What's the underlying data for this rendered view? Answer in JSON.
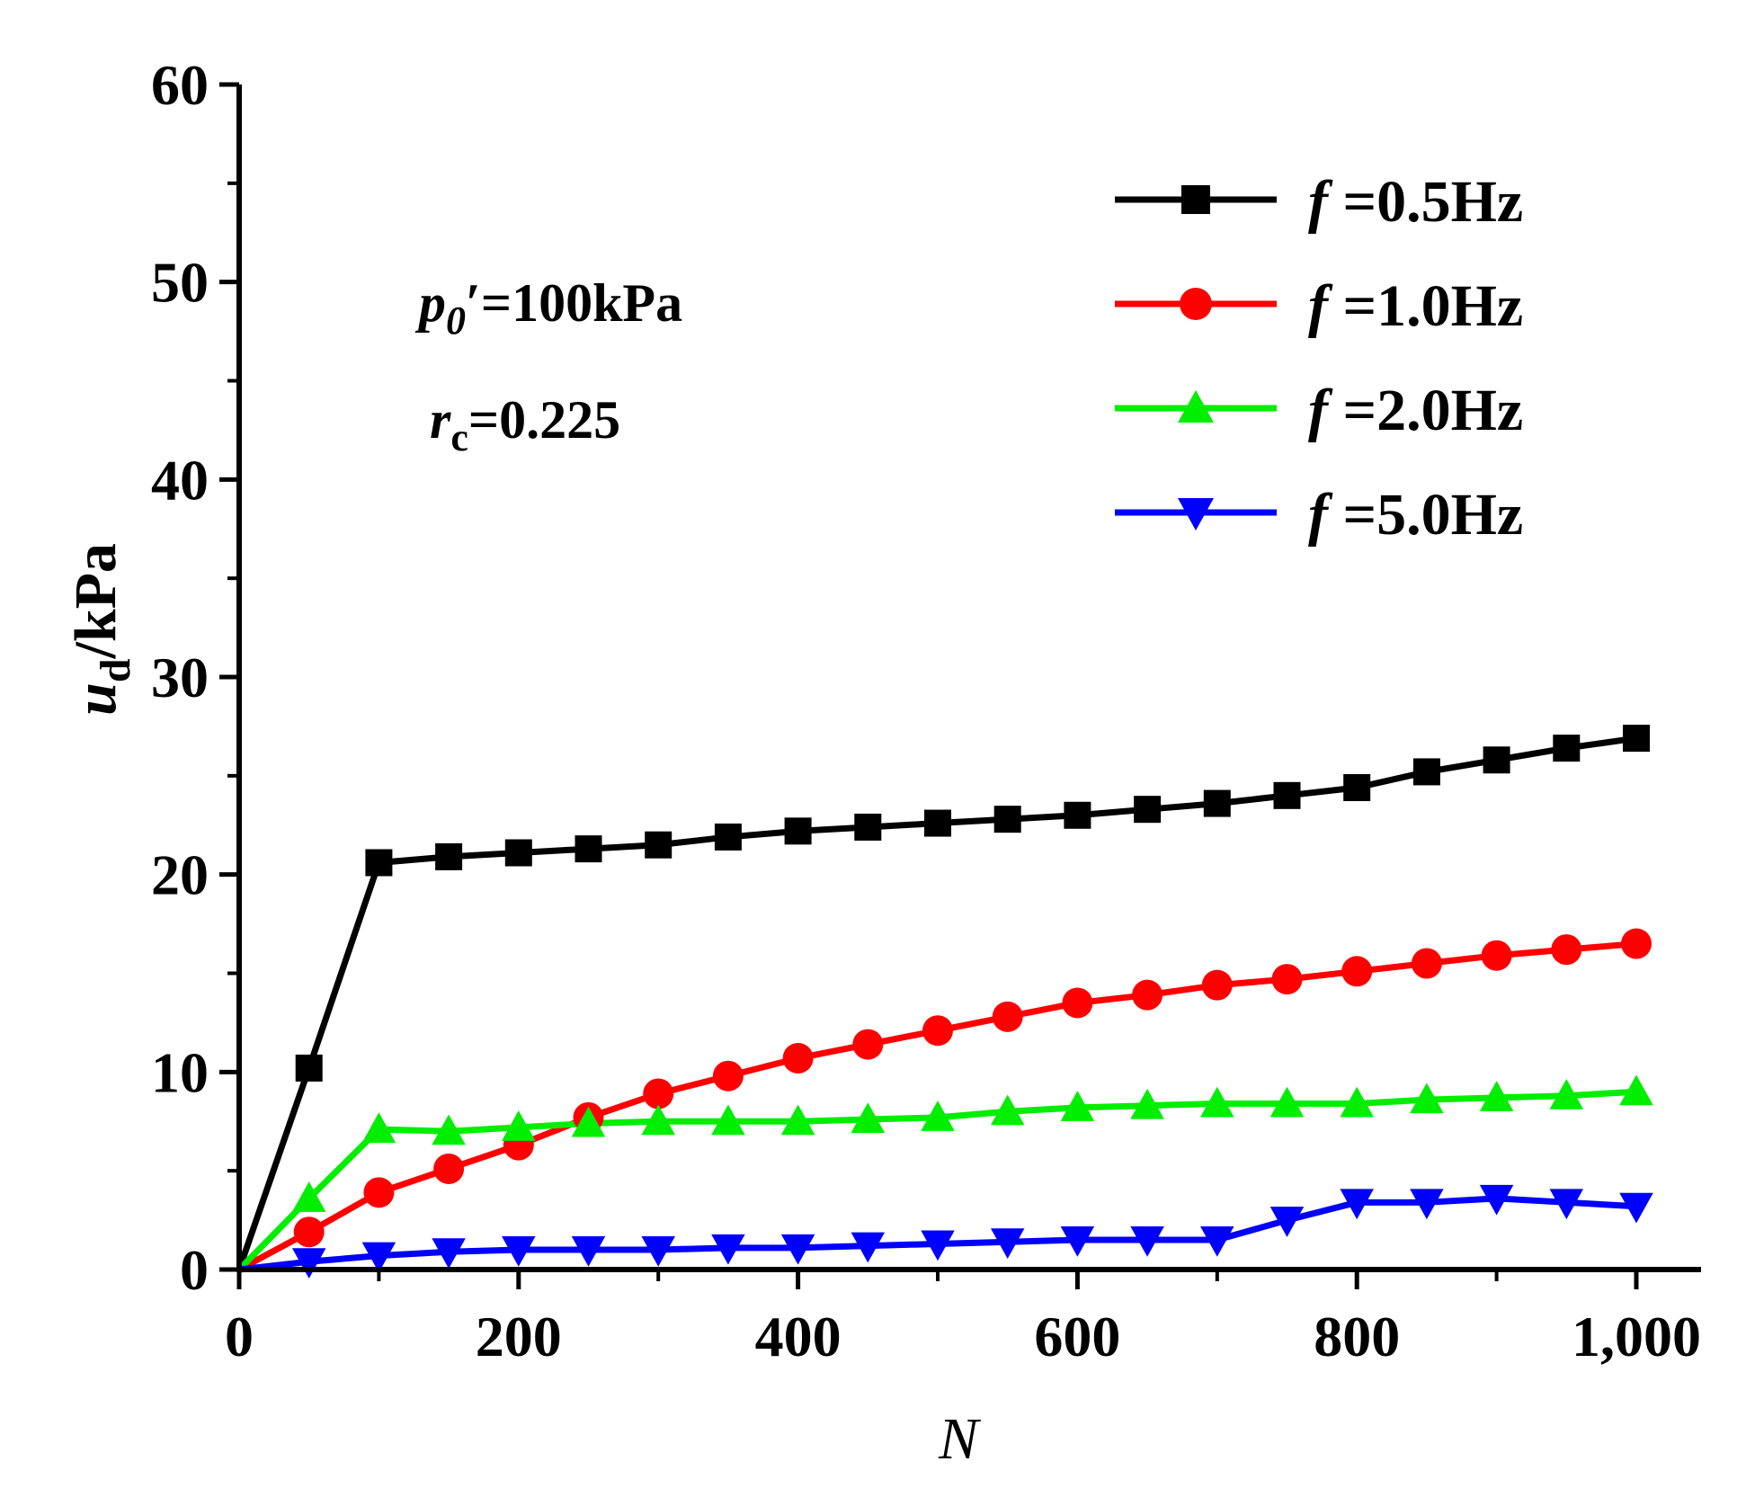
{
  "chart_data": {
    "type": "line",
    "title": "",
    "xlabel": "N",
    "ylabel_main": "u",
    "ylabel_sub": "d",
    "ylabel_unit": "/kPa",
    "xlim": [
      0,
      1050
    ],
    "ylim": [
      0,
      60
    ],
    "xticks": [
      0,
      200,
      400,
      600,
      800,
      1000
    ],
    "xtick_labels": [
      "0",
      "200",
      "400",
      "600",
      "800",
      "1,000"
    ],
    "yticks": [
      0,
      10,
      20,
      30,
      40,
      50,
      60
    ],
    "ytick_labels": [
      "0",
      "10",
      "20",
      "30",
      "40",
      "50",
      "60"
    ],
    "x": [
      0,
      50,
      100,
      150,
      200,
      250,
      300,
      350,
      400,
      450,
      500,
      550,
      600,
      650,
      700,
      750,
      800,
      850,
      900,
      950,
      1000
    ],
    "series": [
      {
        "name_italic": "f",
        "name_rest": " =0.5Hz",
        "color": "#000000",
        "marker": "square",
        "values": [
          0,
          10.2,
          20.6,
          20.9,
          21.1,
          21.3,
          21.5,
          21.9,
          22.2,
          22.4,
          22.6,
          22.8,
          23.0,
          23.3,
          23.6,
          24.0,
          24.4,
          25.2,
          25.8,
          26.4,
          26.9
        ]
      },
      {
        "name_italic": "f",
        "name_rest": " =1.0Hz",
        "color": "#ff0000",
        "marker": "circle",
        "values": [
          0,
          1.9,
          3.9,
          5.1,
          6.3,
          7.7,
          8.9,
          9.8,
          10.7,
          11.4,
          12.1,
          12.8,
          13.5,
          13.9,
          14.4,
          14.7,
          15.1,
          15.5,
          15.9,
          16.2,
          16.5
        ]
      },
      {
        "name_italic": "f",
        "name_rest": " =2.0Hz",
        "color": "#00ee00",
        "marker": "triangle-up",
        "values": [
          0,
          3.6,
          7.1,
          7.0,
          7.2,
          7.4,
          7.5,
          7.5,
          7.5,
          7.6,
          7.7,
          8.0,
          8.2,
          8.3,
          8.4,
          8.4,
          8.4,
          8.6,
          8.7,
          8.8,
          9.0
        ]
      },
      {
        "name_italic": "f",
        "name_rest": " =5.0Hz",
        "color": "#0000ff",
        "marker": "triangle-down",
        "values": [
          0,
          0.4,
          0.7,
          0.9,
          1.0,
          1.0,
          1.0,
          1.1,
          1.1,
          1.2,
          1.3,
          1.4,
          1.5,
          1.5,
          1.5,
          2.5,
          3.4,
          3.4,
          3.6,
          3.4,
          3.2
        ]
      }
    ],
    "annotation_p0_main": "p",
    "annotation_p0_sub": "0",
    "annotation_p0_prime": "′",
    "annotation_p0_value": "=100kPa",
    "annotation_rc_main": "r",
    "annotation_rc_sub": "c",
    "annotation_rc_value": "=0.225",
    "legend_position": "top-right"
  }
}
